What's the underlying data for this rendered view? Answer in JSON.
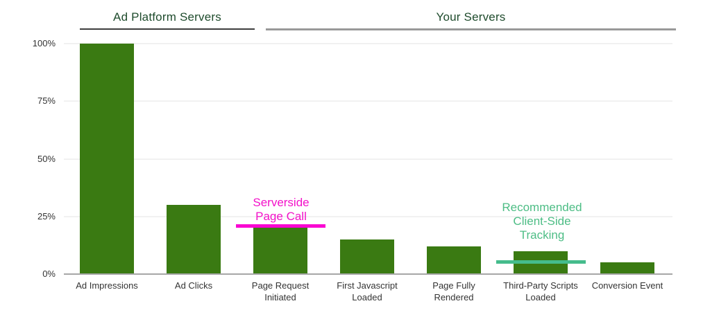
{
  "chart_data": {
    "type": "bar",
    "title": "",
    "categories": [
      "Ad Impressions",
      "Ad Clicks",
      "Page Request Initiated",
      "First Javascript Loaded",
      "Page Fully Rendered",
      "Third-Party Scripts Loaded",
      "Conversion Event"
    ],
    "values": [
      100,
      30,
      20,
      15,
      12,
      10,
      5
    ],
    "unit": "%",
    "ylim": [
      0,
      100
    ],
    "ytick_labels": [
      "0%",
      "25%",
      "50%",
      "75%",
      "100%"
    ],
    "ytick_values": [
      0,
      25,
      50,
      75,
      100
    ],
    "grid": "horizontal-light",
    "legend": "none",
    "bar_color": "#3A7A12",
    "axis_label_color": "#333333",
    "section_header_color": "#1E4B2C",
    "sections": [
      {
        "label": "Ad Platform Servers",
        "covers_categories": [
          "Ad Impressions",
          "Ad Clicks"
        ],
        "underline_color": "#3D3D3D"
      },
      {
        "label": "Your Servers",
        "covers_categories": [
          "Page Request Initiated",
          "First Javascript Loaded",
          "Page Fully Rendered",
          "Third-Party Scripts Loaded",
          "Conversion Event"
        ],
        "underline_color": "#999999"
      }
    ],
    "annotations": [
      {
        "text": "Serverside Page Call",
        "text_color": "#F311C9",
        "line_color": "#FA00D2",
        "line_value": 21,
        "attached_to": "Page Request Initiated"
      },
      {
        "text": "Recommended Client-Side Tracking",
        "text_color": "#4DBD85",
        "line_color": "#45BC8C",
        "line_value": 5.5,
        "attached_to": "Third-Party Scripts Loaded"
      }
    ]
  }
}
